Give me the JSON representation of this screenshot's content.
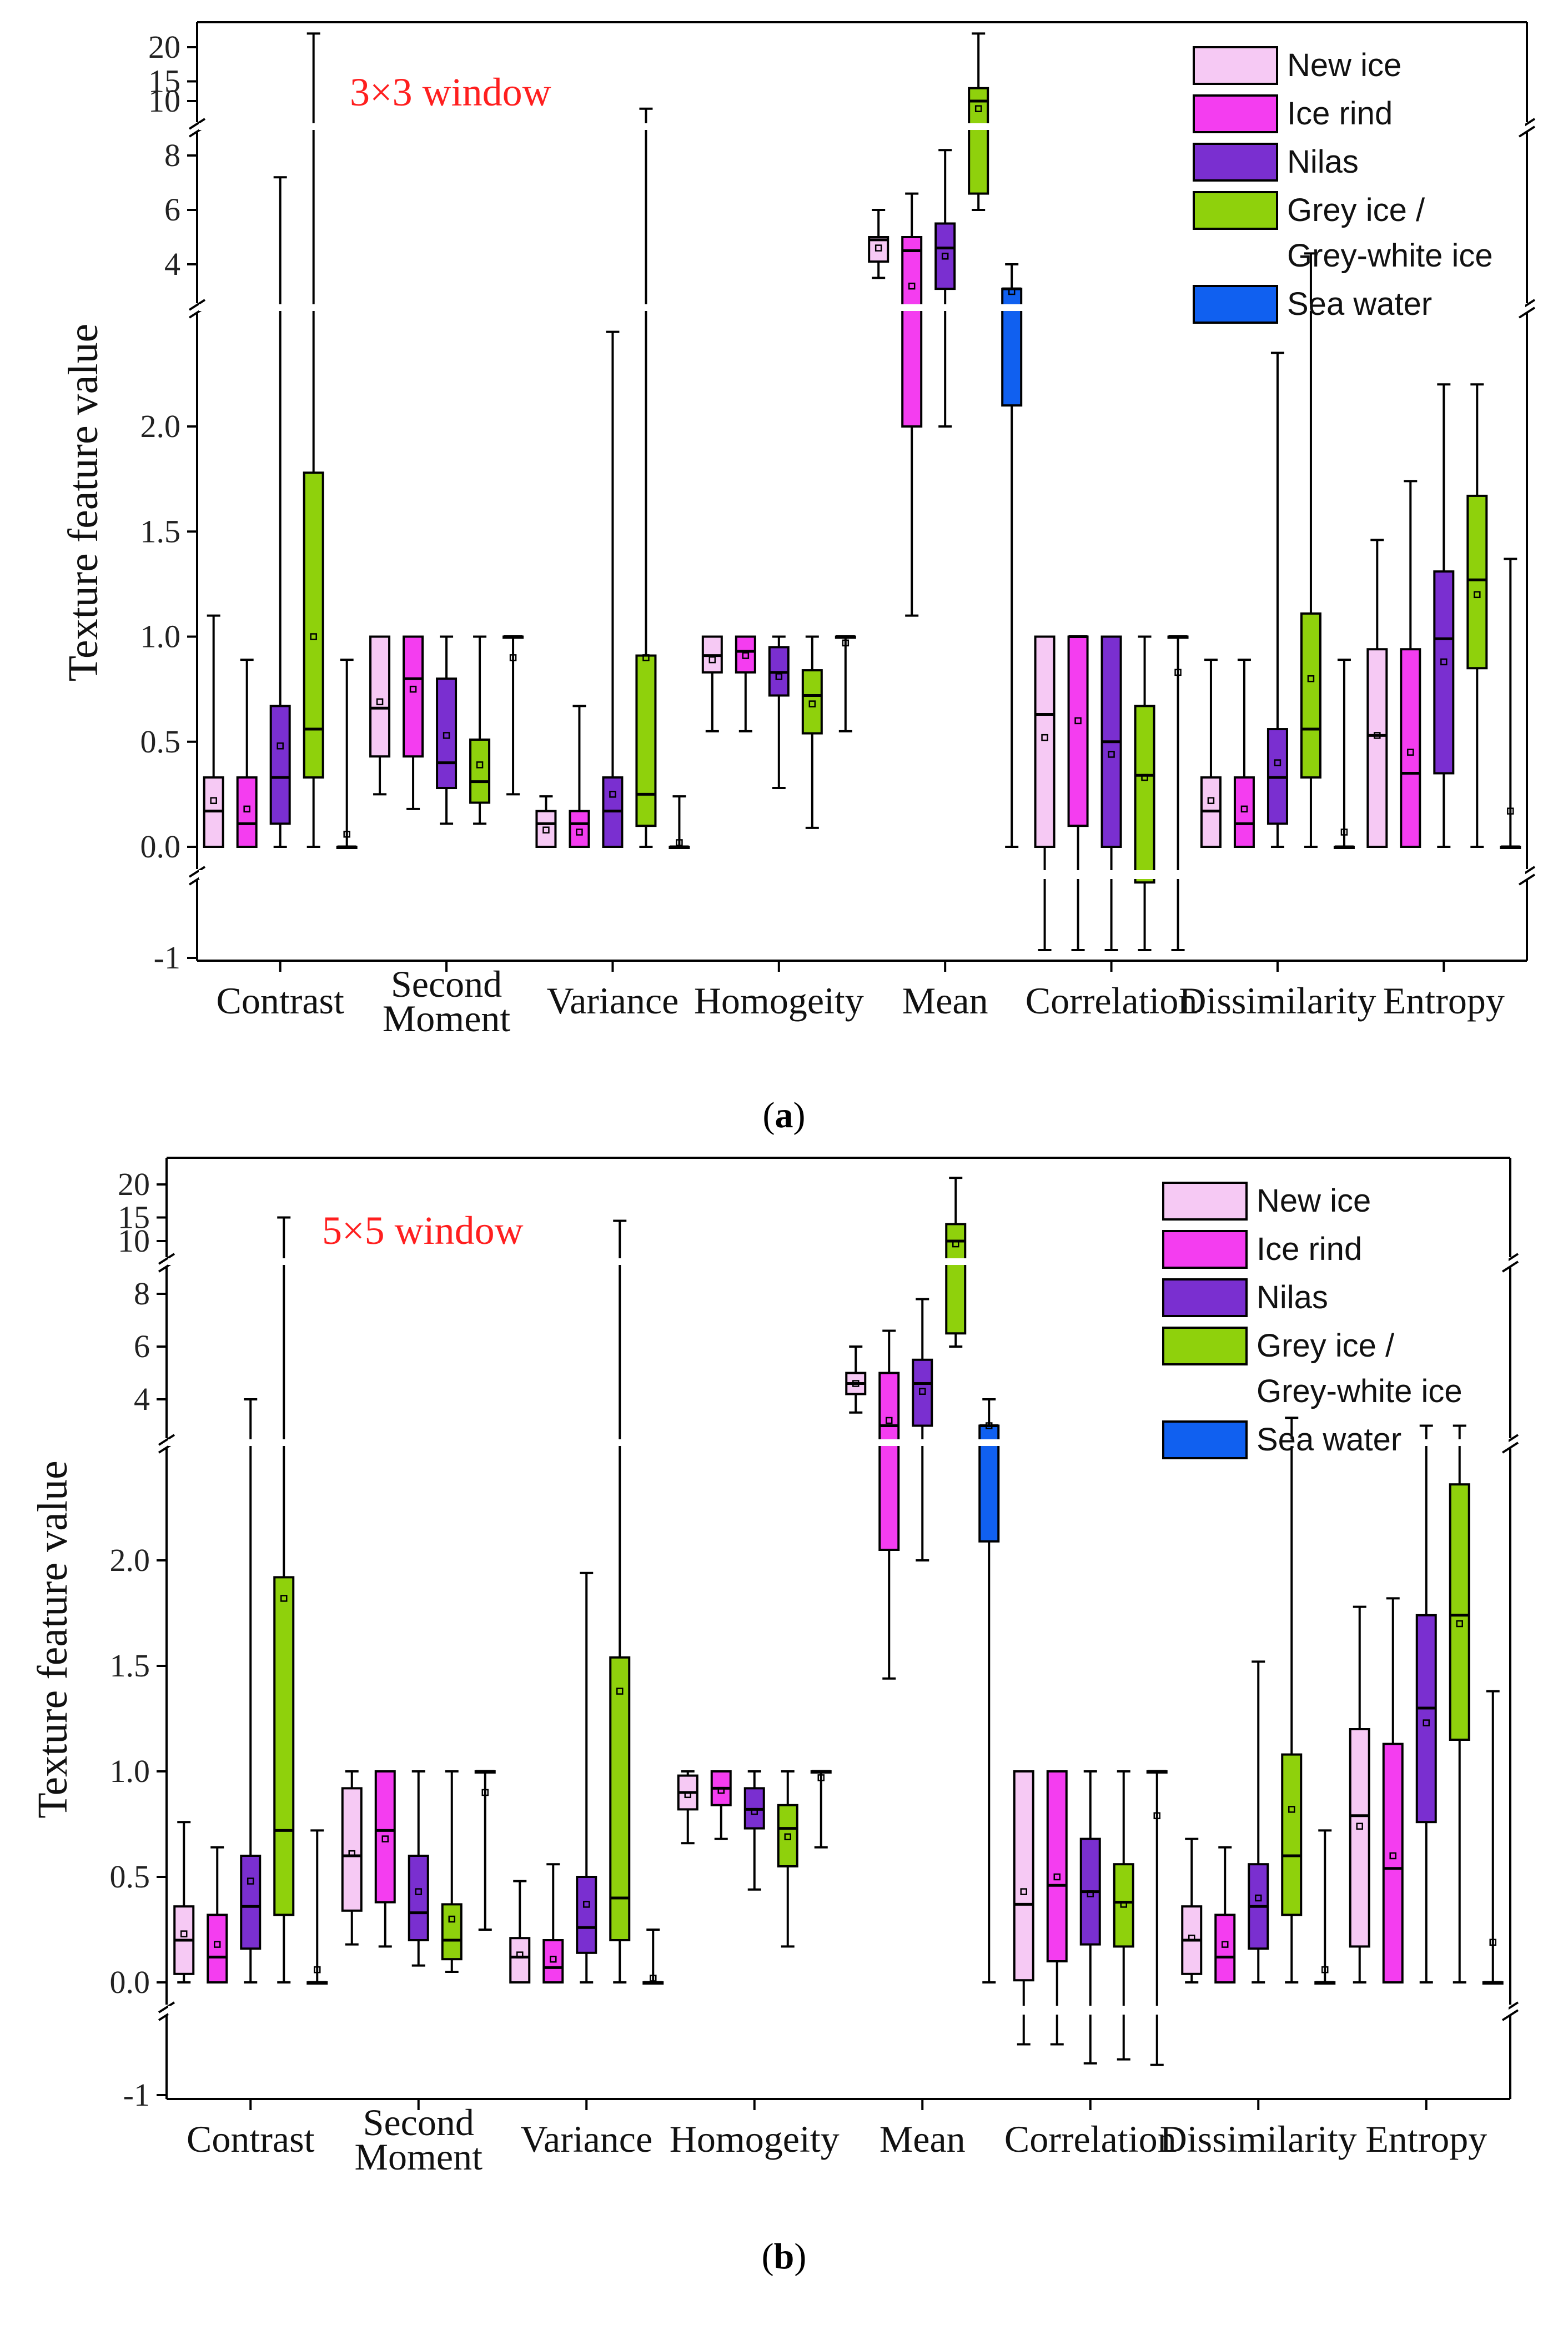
{
  "colors": {
    "new_ice": "#F6C9F4",
    "ice_rind": "#F43DF0",
    "nilas": "#7A2FD0",
    "grey_ice": "#8FD10C",
    "sea_water": "#1060F0",
    "window_label": "#FF1F1F"
  },
  "axis": {
    "ylabel": "Texture feature value",
    "lower_ticks": [
      "-1",
      "0.0",
      "0.5",
      "1.0",
      "1.5",
      "2.0"
    ],
    "mid_ticks": [
      "4",
      "6",
      "8"
    ],
    "upper_ticks": [
      "10",
      "15",
      "20"
    ]
  },
  "legend": [
    {
      "key": "new_ice",
      "lines": [
        "New ice"
      ]
    },
    {
      "key": "ice_rind",
      "lines": [
        "Ice rind"
      ]
    },
    {
      "key": "nilas",
      "lines": [
        "Nilas"
      ]
    },
    {
      "key": "grey_ice",
      "lines": [
        "Grey ice /",
        "Grey-white ice"
      ]
    },
    {
      "key": "sea_water",
      "lines": [
        "Sea water"
      ]
    }
  ],
  "chart_data": [
    {
      "type": "box",
      "title": "3×3 window",
      "caption": "a",
      "ylabel": "Texture feature value",
      "series_names": [
        "New ice",
        "Ice rind",
        "Nilas",
        "Grey ice / Grey-white ice",
        "Sea water"
      ],
      "categories": [
        {
          "lines": [
            "Contrast"
          ],
          "boxes": [
            {
              "min": 0,
              "q1": 0,
              "med": 0.17,
              "q3": 0.33,
              "max": 1.1,
              "mean": 0.22
            },
            {
              "min": 0,
              "q1": 0,
              "med": 0.11,
              "q3": 0.33,
              "max": 0.89,
              "mean": 0.18
            },
            {
              "min": 0,
              "q1": 0.11,
              "med": 0.33,
              "q3": 0.67,
              "max": 7.2,
              "mean": 0.48
            },
            {
              "min": 0,
              "q1": 0.33,
              "med": 0.56,
              "q3": 1.78,
              "max": 22,
              "mean": 1.0
            },
            {
              "min": 0,
              "q1": 0,
              "med": 0,
              "q3": 0,
              "max": 0.89,
              "mean": 0.06
            }
          ]
        },
        {
          "lines": [
            "Second",
            "Moment"
          ],
          "boxes": [
            {
              "min": 0.25,
              "q1": 0.43,
              "med": 0.66,
              "q3": 1.0,
              "max": 1.0,
              "mean": 0.69
            },
            {
              "min": 0.18,
              "q1": 0.43,
              "med": 0.8,
              "q3": 1.0,
              "max": 1.0,
              "mean": 0.75
            },
            {
              "min": 0.11,
              "q1": 0.28,
              "med": 0.4,
              "q3": 0.8,
              "max": 1.0,
              "mean": 0.53
            },
            {
              "min": 0.11,
              "q1": 0.21,
              "med": 0.31,
              "q3": 0.51,
              "max": 1.0,
              "mean": 0.39
            },
            {
              "min": 0.25,
              "q1": 1.0,
              "med": 1.0,
              "q3": 1.0,
              "max": 1.0,
              "mean": 0.9
            }
          ]
        },
        {
          "lines": [
            "Variance"
          ],
          "boxes": [
            {
              "min": 0,
              "q1": 0,
              "med": 0.11,
              "q3": 0.17,
              "max": 0.24,
              "mean": 0.08
            },
            {
              "min": 0,
              "q1": 0,
              "med": 0.11,
              "q3": 0.17,
              "max": 0.67,
              "mean": 0.07
            },
            {
              "min": 0,
              "q1": 0,
              "med": 0.17,
              "q3": 0.33,
              "max": 2.45,
              "mean": 0.25
            },
            {
              "min": 0,
              "q1": 0.1,
              "med": 0.25,
              "q3": 0.91,
              "max": 11,
              "mean": 0.9
            },
            {
              "min": 0,
              "q1": 0,
              "med": 0,
              "q3": 0,
              "max": 0.24,
              "mean": 0.02
            }
          ]
        },
        {
          "lines": [
            "Homogeity"
          ],
          "boxes": [
            {
              "min": 0.55,
              "q1": 0.83,
              "med": 0.91,
              "q3": 1.0,
              "max": 1.0,
              "mean": 0.89
            },
            {
              "min": 0.55,
              "q1": 0.83,
              "med": 0.93,
              "q3": 1.0,
              "max": 1.0,
              "mean": 0.91
            },
            {
              "min": 0.28,
              "q1": 0.72,
              "med": 0.83,
              "q3": 0.95,
              "max": 1.0,
              "mean": 0.81
            },
            {
              "min": 0.09,
              "q1": 0.54,
              "med": 0.72,
              "q3": 0.84,
              "max": 1.0,
              "mean": 0.68
            },
            {
              "min": 0.55,
              "q1": 1.0,
              "med": 1.0,
              "q3": 1.0,
              "max": 1.0,
              "mean": 0.97
            }
          ]
        },
        {
          "lines": [
            "Mean"
          ],
          "boxes": [
            {
              "min": 3.5,
              "q1": 4.1,
              "med": 4.9,
              "q3": 5.0,
              "max": 6.0,
              "mean": 4.6
            },
            {
              "min": 1.1,
              "q1": 2.0,
              "med": 4.5,
              "q3": 5.0,
              "max": 6.6,
              "mean": 3.2
            },
            {
              "min": 2.0,
              "q1": 3.1,
              "med": 4.6,
              "q3": 5.5,
              "max": 8.2,
              "mean": 4.3
            },
            {
              "min": 6.0,
              "q1": 6.6,
              "med": 10.0,
              "q3": 14.0,
              "max": 22,
              "mean": 11.0
            },
            {
              "min": 0,
              "q1": 2.1,
              "med": 3.1,
              "q3": 3.1,
              "max": 4.0,
              "mean": 2.8
            }
          ]
        },
        {
          "lines": [
            "Correlation"
          ],
          "boxes": [
            {
              "min": -0.9,
              "q1": 0,
              "med": 0.63,
              "q3": 1.0,
              "max": 1.0,
              "mean": 0.52
            },
            {
              "min": -0.9,
              "q1": 0.1,
              "med": 1.0,
              "q3": 1.0,
              "max": 1.0,
              "mean": 0.6
            },
            {
              "min": -0.9,
              "q1": 0,
              "med": 0.5,
              "q3": 1.0,
              "max": 1.0,
              "mean": 0.44
            },
            {
              "min": -0.9,
              "q1": -0.03,
              "med": 0.34,
              "q3": 0.67,
              "max": 1.0,
              "mean": 0.33
            },
            {
              "min": -0.9,
              "q1": 1.0,
              "med": 1.0,
              "q3": 1.0,
              "max": 1.0,
              "mean": 0.83
            }
          ]
        },
        {
          "lines": [
            "Dissimilarity"
          ],
          "boxes": [
            {
              "min": 0,
              "q1": 0,
              "med": 0.17,
              "q3": 0.33,
              "max": 0.89,
              "mean": 0.22
            },
            {
              "min": 0,
              "q1": 0,
              "med": 0.11,
              "q3": 0.33,
              "max": 0.89,
              "mean": 0.18
            },
            {
              "min": 0,
              "q1": 0.11,
              "med": 0.33,
              "q3": 0.56,
              "max": 2.35,
              "mean": 0.4
            },
            {
              "min": 0,
              "q1": 0.33,
              "med": 0.56,
              "q3": 1.11,
              "max": 4.4,
              "mean": 0.8
            },
            {
              "min": 0,
              "q1": 0,
              "med": 0,
              "q3": 0,
              "max": 0.89,
              "mean": 0.07
            }
          ]
        },
        {
          "lines": [
            "Entropy"
          ],
          "boxes": [
            {
              "min": 0,
              "q1": 0,
              "med": 0.53,
              "q3": 0.94,
              "max": 1.46,
              "mean": 0.53
            },
            {
              "min": 0,
              "q1": 0,
              "med": 0.35,
              "q3": 0.94,
              "max": 1.74,
              "mean": 0.45
            },
            {
              "min": 0,
              "q1": 0.35,
              "med": 0.99,
              "q3": 1.31,
              "max": 2.2,
              "mean": 0.88
            },
            {
              "min": 0,
              "q1": 0.85,
              "med": 1.27,
              "q3": 1.67,
              "max": 2.2,
              "mean": 1.2
            },
            {
              "min": 0,
              "q1": 0,
              "med": 0,
              "q3": 0,
              "max": 1.37,
              "mean": 0.17
            }
          ]
        }
      ]
    },
    {
      "type": "box",
      "title": "5×5 window",
      "caption": "b",
      "ylabel": "Texture feature value",
      "series_names": [
        "New ice",
        "Ice rind",
        "Nilas",
        "Grey ice / Grey-white ice",
        "Sea water"
      ],
      "categories": [
        {
          "lines": [
            "Contrast"
          ],
          "boxes": [
            {
              "min": 0,
              "q1": 0.04,
              "med": 0.2,
              "q3": 0.36,
              "max": 0.76,
              "mean": 0.23
            },
            {
              "min": 0,
              "q1": 0,
              "med": 0.12,
              "q3": 0.32,
              "max": 0.64,
              "mean": 0.18
            },
            {
              "min": 0,
              "q1": 0.16,
              "med": 0.36,
              "q3": 0.6,
              "max": 4.0,
              "mean": 0.48
            },
            {
              "min": 0,
              "q1": 0.32,
              "med": 0.72,
              "q3": 1.92,
              "max": 15,
              "mean": 1.82
            },
            {
              "min": 0,
              "q1": 0,
              "med": 0,
              "q3": 0,
              "max": 0.72,
              "mean": 0.06
            }
          ]
        },
        {
          "lines": [
            "Second",
            "Moment"
          ],
          "boxes": [
            {
              "min": 0.18,
              "q1": 0.34,
              "med": 0.6,
              "q3": 0.92,
              "max": 1.0,
              "mean": 0.61
            },
            {
              "min": 0.17,
              "q1": 0.38,
              "med": 0.72,
              "q3": 1.0,
              "max": 1.0,
              "mean": 0.68
            },
            {
              "min": 0.08,
              "q1": 0.2,
              "med": 0.33,
              "q3": 0.6,
              "max": 1.0,
              "mean": 0.43
            },
            {
              "min": 0.05,
              "q1": 0.11,
              "med": 0.2,
              "q3": 0.37,
              "max": 1.0,
              "mean": 0.3
            },
            {
              "min": 0.25,
              "q1": 1.0,
              "med": 1.0,
              "q3": 1.0,
              "max": 1.0,
              "mean": 0.9
            }
          ]
        },
        {
          "lines": [
            "Variance"
          ],
          "boxes": [
            {
              "min": 0,
              "q1": 0,
              "med": 0.12,
              "q3": 0.21,
              "max": 0.48,
              "mean": 0.13
            },
            {
              "min": 0,
              "q1": 0,
              "med": 0.07,
              "q3": 0.2,
              "max": 0.56,
              "mean": 0.11
            },
            {
              "min": 0,
              "q1": 0.14,
              "med": 0.26,
              "q3": 0.5,
              "max": 1.94,
              "mean": 0.37
            },
            {
              "min": 0,
              "q1": 0.2,
              "med": 0.4,
              "q3": 1.54,
              "max": 14.5,
              "mean": 1.38
            },
            {
              "min": 0,
              "q1": 0,
              "med": 0,
              "q3": 0,
              "max": 0.25,
              "mean": 0.02
            }
          ]
        },
        {
          "lines": [
            "Homogeity"
          ],
          "boxes": [
            {
              "min": 0.66,
              "q1": 0.82,
              "med": 0.9,
              "q3": 0.98,
              "max": 1.0,
              "mean": 0.89
            },
            {
              "min": 0.68,
              "q1": 0.84,
              "med": 0.92,
              "q3": 1.0,
              "max": 1.0,
              "mean": 0.91
            },
            {
              "min": 0.44,
              "q1": 0.73,
              "med": 0.82,
              "q3": 0.92,
              "max": 1.0,
              "mean": 0.81
            },
            {
              "min": 0.17,
              "q1": 0.55,
              "med": 0.73,
              "q3": 0.84,
              "max": 1.0,
              "mean": 0.69
            },
            {
              "min": 0.64,
              "q1": 1.0,
              "med": 1.0,
              "q3": 1.0,
              "max": 1.0,
              "mean": 0.97
            }
          ]
        },
        {
          "lines": [
            "Mean"
          ],
          "boxes": [
            {
              "min": 3.5,
              "q1": 4.2,
              "med": 4.6,
              "q3": 5.0,
              "max": 6.0,
              "mean": 4.6
            },
            {
              "min": 1.44,
              "q1": 2.05,
              "med": 2.5,
              "q3": 5.0,
              "max": 6.6,
              "mean": 3.2
            },
            {
              "min": 2.0,
              "q1": 3.0,
              "med": 4.6,
              "q3": 5.5,
              "max": 7.8,
              "mean": 4.3
            },
            {
              "min": 6.0,
              "q1": 6.5,
              "med": 10.0,
              "q3": 14.0,
              "max": 21,
              "mean": 11.0
            },
            {
              "min": 0,
              "q1": 2.09,
              "med": 2.9,
              "q3": 3.0,
              "max": 4.0,
              "mean": 2.8
            }
          ]
        },
        {
          "lines": [
            "Correlation"
          ],
          "boxes": [
            {
              "min": -0.36,
              "q1": 0.01,
              "med": 0.37,
              "q3": 1.0,
              "max": 1.0,
              "mean": 0.43
            },
            {
              "min": -0.36,
              "q1": 0.1,
              "med": 0.46,
              "q3": 1.0,
              "max": 1.0,
              "mean": 0.5
            },
            {
              "min": -0.6,
              "q1": 0.18,
              "med": 0.43,
              "q3": 0.68,
              "max": 1.0,
              "mean": 0.42
            },
            {
              "min": -0.55,
              "q1": 0.17,
              "med": 0.38,
              "q3": 0.56,
              "max": 1.0,
              "mean": 0.37
            },
            {
              "min": -0.62,
              "q1": 1.0,
              "med": 1.0,
              "q3": 1.0,
              "max": 1.0,
              "mean": 0.79
            }
          ]
        },
        {
          "lines": [
            "Dissimilarity"
          ],
          "boxes": [
            {
              "min": 0,
              "q1": 0.04,
              "med": 0.2,
              "q3": 0.36,
              "max": 0.68,
              "mean": 0.21
            },
            {
              "min": 0,
              "q1": 0,
              "med": 0.12,
              "q3": 0.32,
              "max": 0.64,
              "mean": 0.18
            },
            {
              "min": 0,
              "q1": 0.16,
              "med": 0.36,
              "q3": 0.56,
              "max": 1.52,
              "mean": 0.4
            },
            {
              "min": 0,
              "q1": 0.32,
              "med": 0.6,
              "q3": 1.08,
              "max": 3.3,
              "mean": 0.82
            },
            {
              "min": 0,
              "q1": 0,
              "med": 0,
              "q3": 0,
              "max": 0.72,
              "mean": 0.06
            }
          ]
        },
        {
          "lines": [
            "Entropy"
          ],
          "boxes": [
            {
              "min": 0,
              "q1": 0.17,
              "med": 0.79,
              "q3": 1.2,
              "max": 1.78,
              "mean": 0.74
            },
            {
              "min": 0,
              "q1": 0,
              "med": 0.54,
              "q3": 1.13,
              "max": 1.82,
              "mean": 0.6
            },
            {
              "min": 0,
              "q1": 0.76,
              "med": 1.3,
              "q3": 1.74,
              "max": 2.5,
              "mean": 1.23
            },
            {
              "min": 0,
              "q1": 1.15,
              "med": 1.74,
              "q3": 2.36,
              "max": 3.0,
              "mean": 1.7
            },
            {
              "min": 0,
              "q1": 0,
              "med": 0,
              "q3": 0,
              "max": 1.38,
              "mean": 0.19
            }
          ]
        }
      ]
    }
  ]
}
